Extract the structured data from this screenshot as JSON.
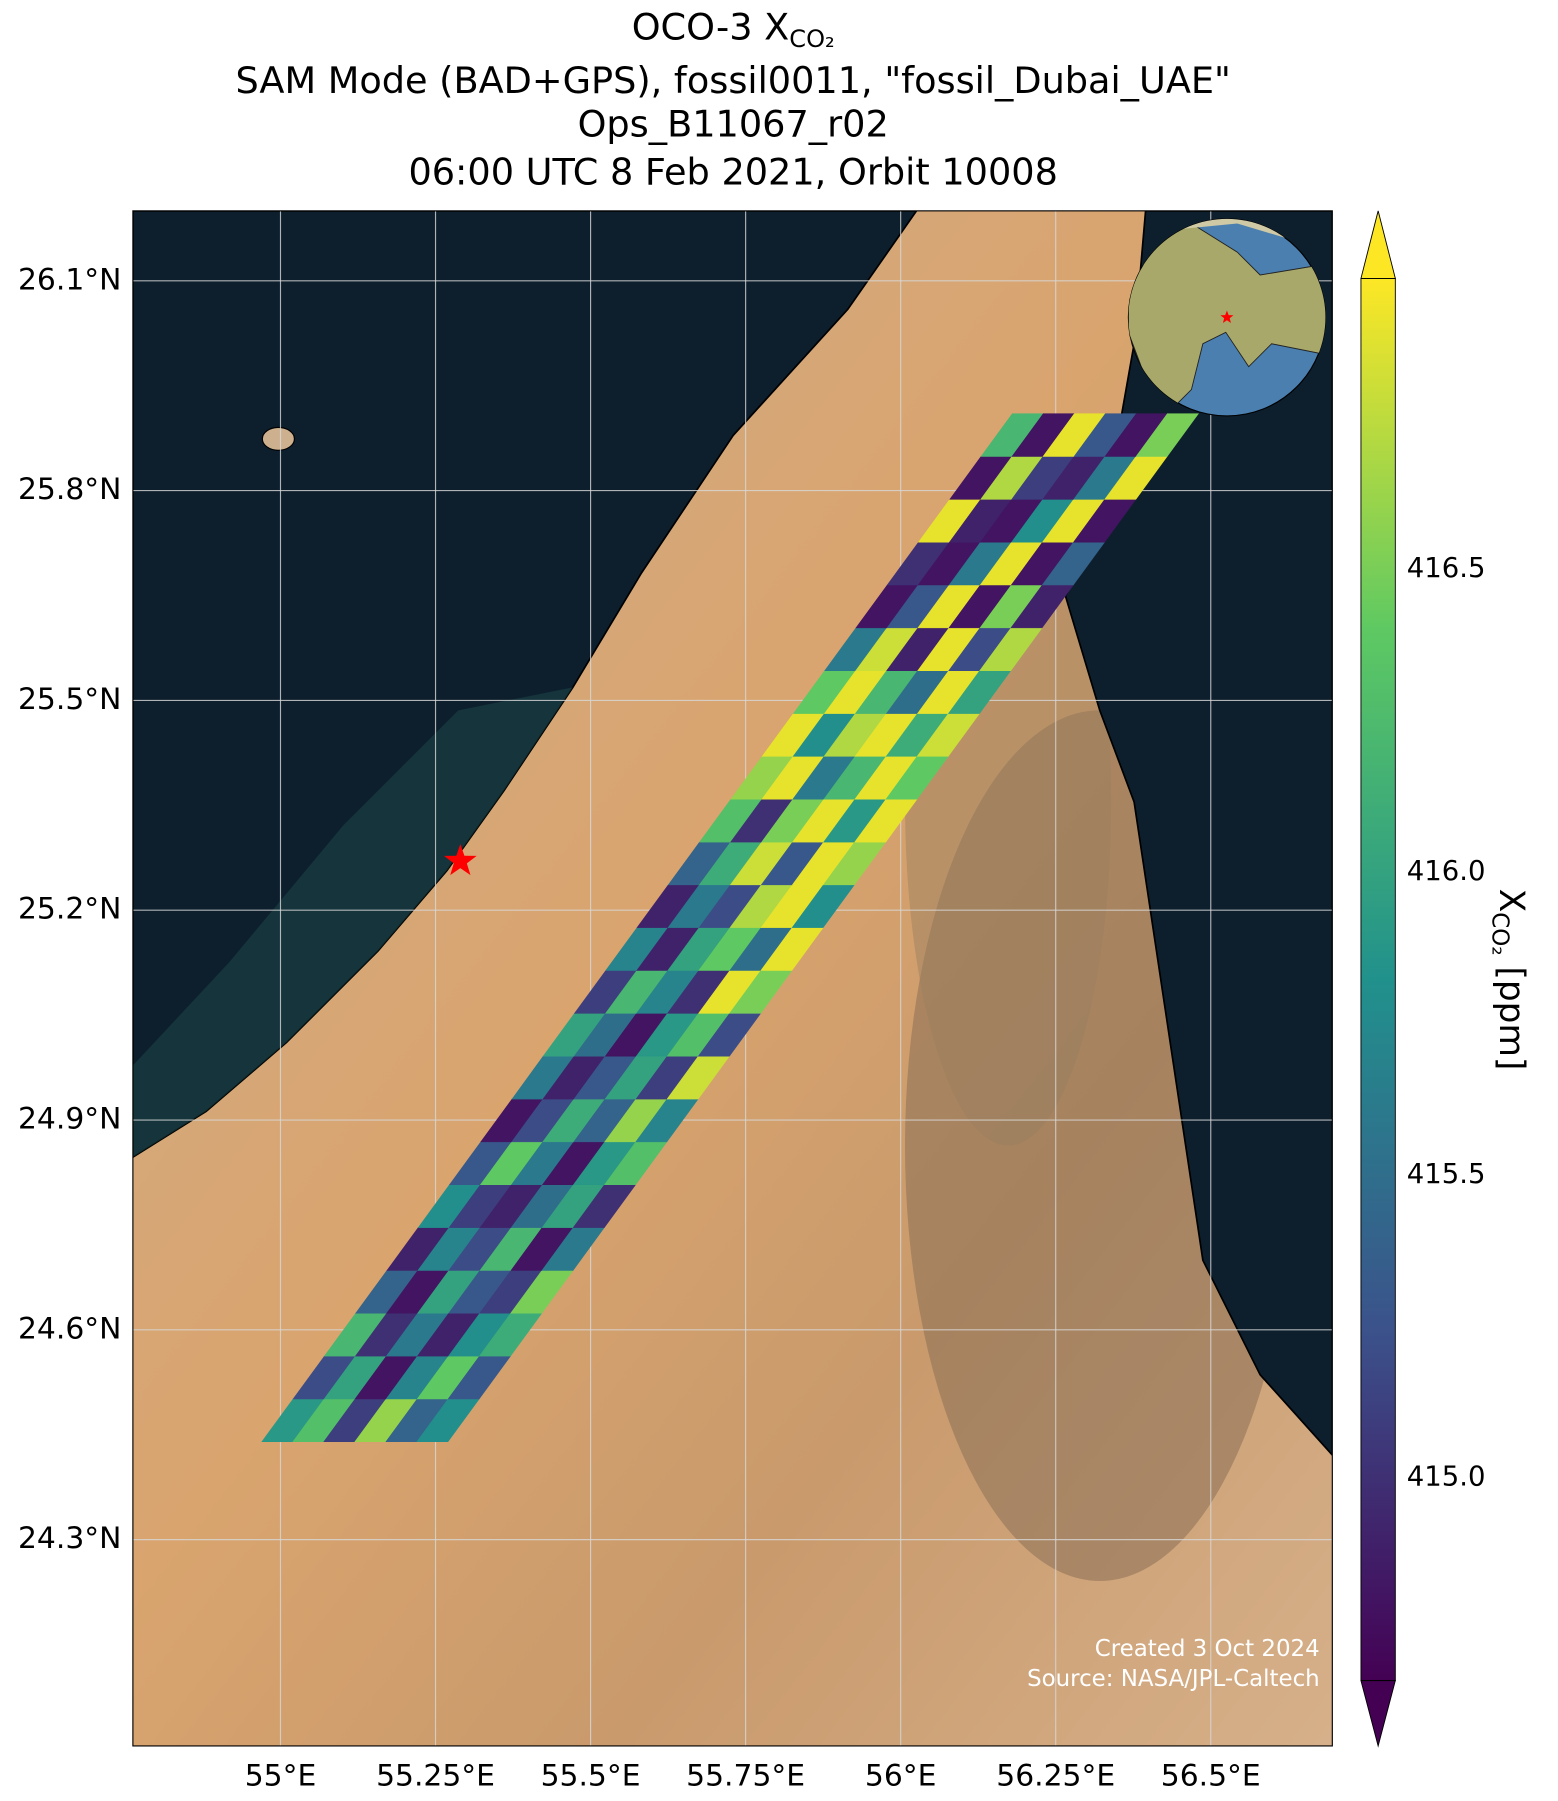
{
  "chart_data": {
    "type": "swath-map",
    "title": {
      "text": "OCO-3 X",
      "subscript": "CO₂"
    },
    "subtitles": [
      "SAM Mode (BAD+GPS), fossil0011, \"fossil_Dubai_UAE\"",
      "Ops_B11067_r02",
      "06:00 UTC 8 Feb 2021, Orbit 10008"
    ],
    "xlim": [
      54.762,
      56.696
    ],
    "ylim": [
      24.005,
      26.2
    ],
    "xticks": [
      {
        "value": 55,
        "label": "55°E"
      },
      {
        "value": 55.25,
        "label": "55.25°E"
      },
      {
        "value": 55.5,
        "label": "55.5°E"
      },
      {
        "value": 55.75,
        "label": "55.75°E"
      },
      {
        "value": 56,
        "label": "56°E"
      },
      {
        "value": 56.25,
        "label": "56.25°E"
      },
      {
        "value": 56.5,
        "label": "56.5°E"
      }
    ],
    "yticks": [
      {
        "value": 24.3,
        "label": "24.3°N"
      },
      {
        "value": 24.6,
        "label": "24.6°N"
      },
      {
        "value": 24.9,
        "label": "24.9°N"
      },
      {
        "value": 25.2,
        "label": "25.2°N"
      },
      {
        "value": 25.5,
        "label": "25.5°N"
      },
      {
        "value": 25.8,
        "label": "25.8°N"
      },
      {
        "value": 26.1,
        "label": "26.1°N"
      }
    ],
    "grid": true,
    "colormap": "viridis",
    "colorbar": {
      "label": {
        "text": "X",
        "subscript": "CO₂",
        "unit": " [ppm]"
      },
      "lim": [
        414.665,
        416.98
      ],
      "ticks": [
        {
          "value": 415,
          "label": "415.0"
        },
        {
          "value": 415.5,
          "label": "415.5"
        },
        {
          "value": 416,
          "label": "416.0"
        },
        {
          "value": 416.5,
          "label": "416.5"
        }
      ]
    },
    "target": {
      "lon": 55.29,
      "lat": 25.27,
      "color": "#ff0000"
    },
    "swath": {
      "start": [
        55.12,
        24.44
      ],
      "end": [
        56.33,
        25.91
      ],
      "width": 0.3
    },
    "cells": [
      [
        415.9,
        416.3,
        415.1,
        416.6,
        415.4,
        415.8
      ],
      [
        415.2,
        416.0,
        414.8,
        415.7,
        416.4,
        415.3
      ],
      [
        416.2,
        415.0,
        415.6,
        414.9,
        415.8,
        416.1
      ],
      [
        415.4,
        414.8,
        416.0,
        415.3,
        415.1,
        416.5
      ],
      [
        414.9,
        415.7,
        415.2,
        416.2,
        414.8,
        415.6
      ],
      [
        415.8,
        415.1,
        414.9,
        415.5,
        416.0,
        415.0
      ],
      [
        415.3,
        416.4,
        415.6,
        414.8,
        415.9,
        416.3
      ],
      [
        414.8,
        415.2,
        416.1,
        415.4,
        416.6,
        415.7
      ],
      [
        415.6,
        414.9,
        415.3,
        416.0,
        415.1,
        416.8
      ],
      [
        416.0,
        415.5,
        414.8,
        415.9,
        416.3,
        415.2
      ],
      [
        415.1,
        416.2,
        415.7,
        415.0,
        416.9,
        416.5
      ],
      [
        415.7,
        414.9,
        416.0,
        416.4,
        415.5,
        416.9
      ],
      [
        414.9,
        415.6,
        415.2,
        416.7,
        416.9,
        415.8
      ],
      [
        415.4,
        416.1,
        416.8,
        415.3,
        416.9,
        416.6
      ],
      [
        416.3,
        415.0,
        416.5,
        416.9,
        415.9,
        416.9
      ],
      [
        416.6,
        416.9,
        415.6,
        416.2,
        416.9,
        416.4
      ],
      [
        416.9,
        415.8,
        416.7,
        416.9,
        416.1,
        416.8
      ],
      [
        416.4,
        416.9,
        416.2,
        415.5,
        416.9,
        416.0
      ],
      [
        415.6,
        416.8,
        414.9,
        416.9,
        415.2,
        416.7
      ],
      [
        414.8,
        415.3,
        416.9,
        414.8,
        416.5,
        414.9
      ],
      [
        415.0,
        414.8,
        415.6,
        416.9,
        414.8,
        415.4
      ],
      [
        416.9,
        414.9,
        414.8,
        415.8,
        416.9,
        414.8
      ],
      [
        414.8,
        416.7,
        415.1,
        414.9,
        415.6,
        416.9
      ],
      [
        416.2,
        414.8,
        416.9,
        415.3,
        414.8,
        416.5
      ]
    ],
    "footnotes": [
      "Created 3 Oct 2024",
      "Source: NASA/JPL-Caltech"
    ]
  }
}
